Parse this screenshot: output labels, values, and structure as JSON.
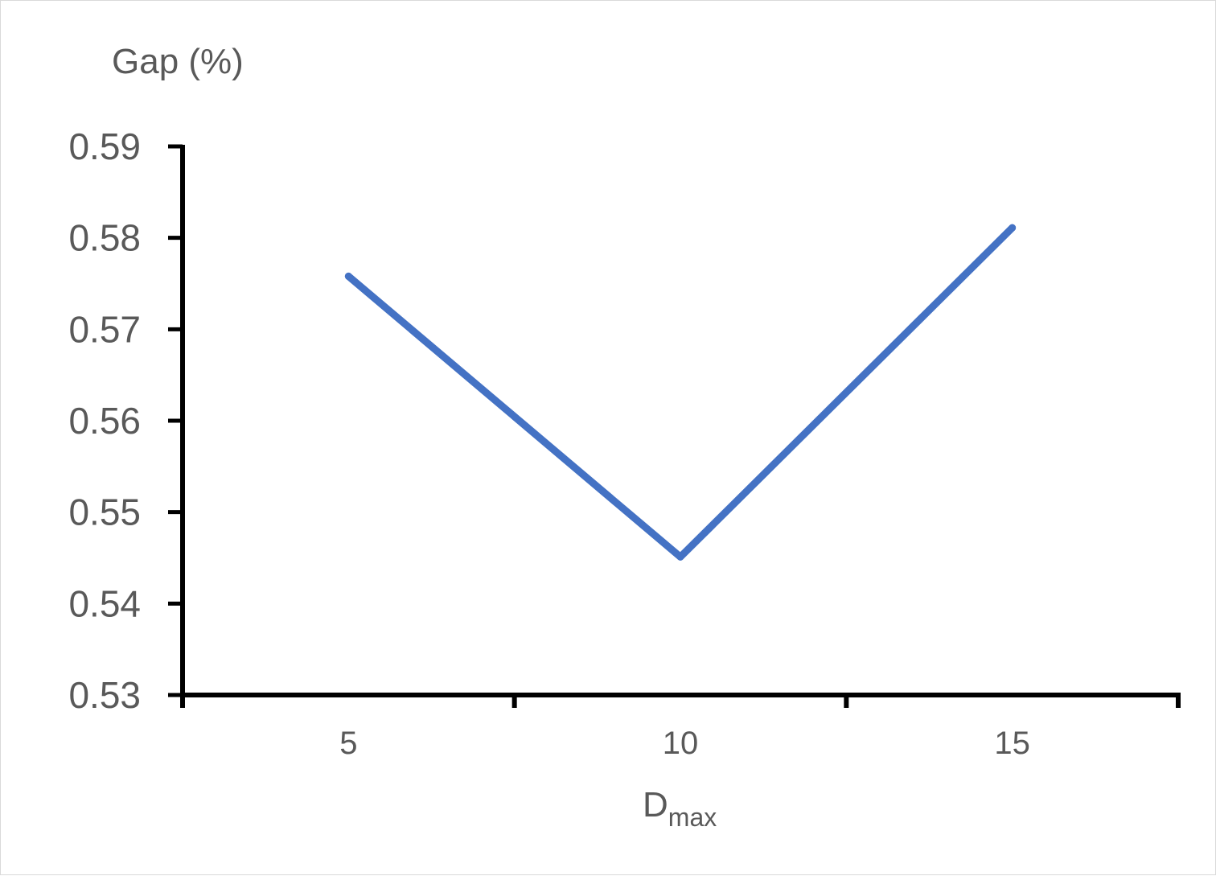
{
  "chart_data": {
    "type": "line",
    "title": "",
    "ylabel": "Gap (%)",
    "xlabel_main": "D",
    "xlabel_sub": "max",
    "categories": [
      "5",
      "10",
      "15"
    ],
    "values": [
      0.5758,
      0.5451,
      0.5811
    ],
    "ylim": [
      0.53,
      0.59
    ],
    "yticks": [
      "0.53",
      "0.54",
      "0.55",
      "0.56",
      "0.57",
      "0.58",
      "0.59"
    ],
    "grid": false,
    "legend": "none",
    "line_color": "#4472c4",
    "axis_color": "#000000",
    "label_color": "#595959"
  }
}
